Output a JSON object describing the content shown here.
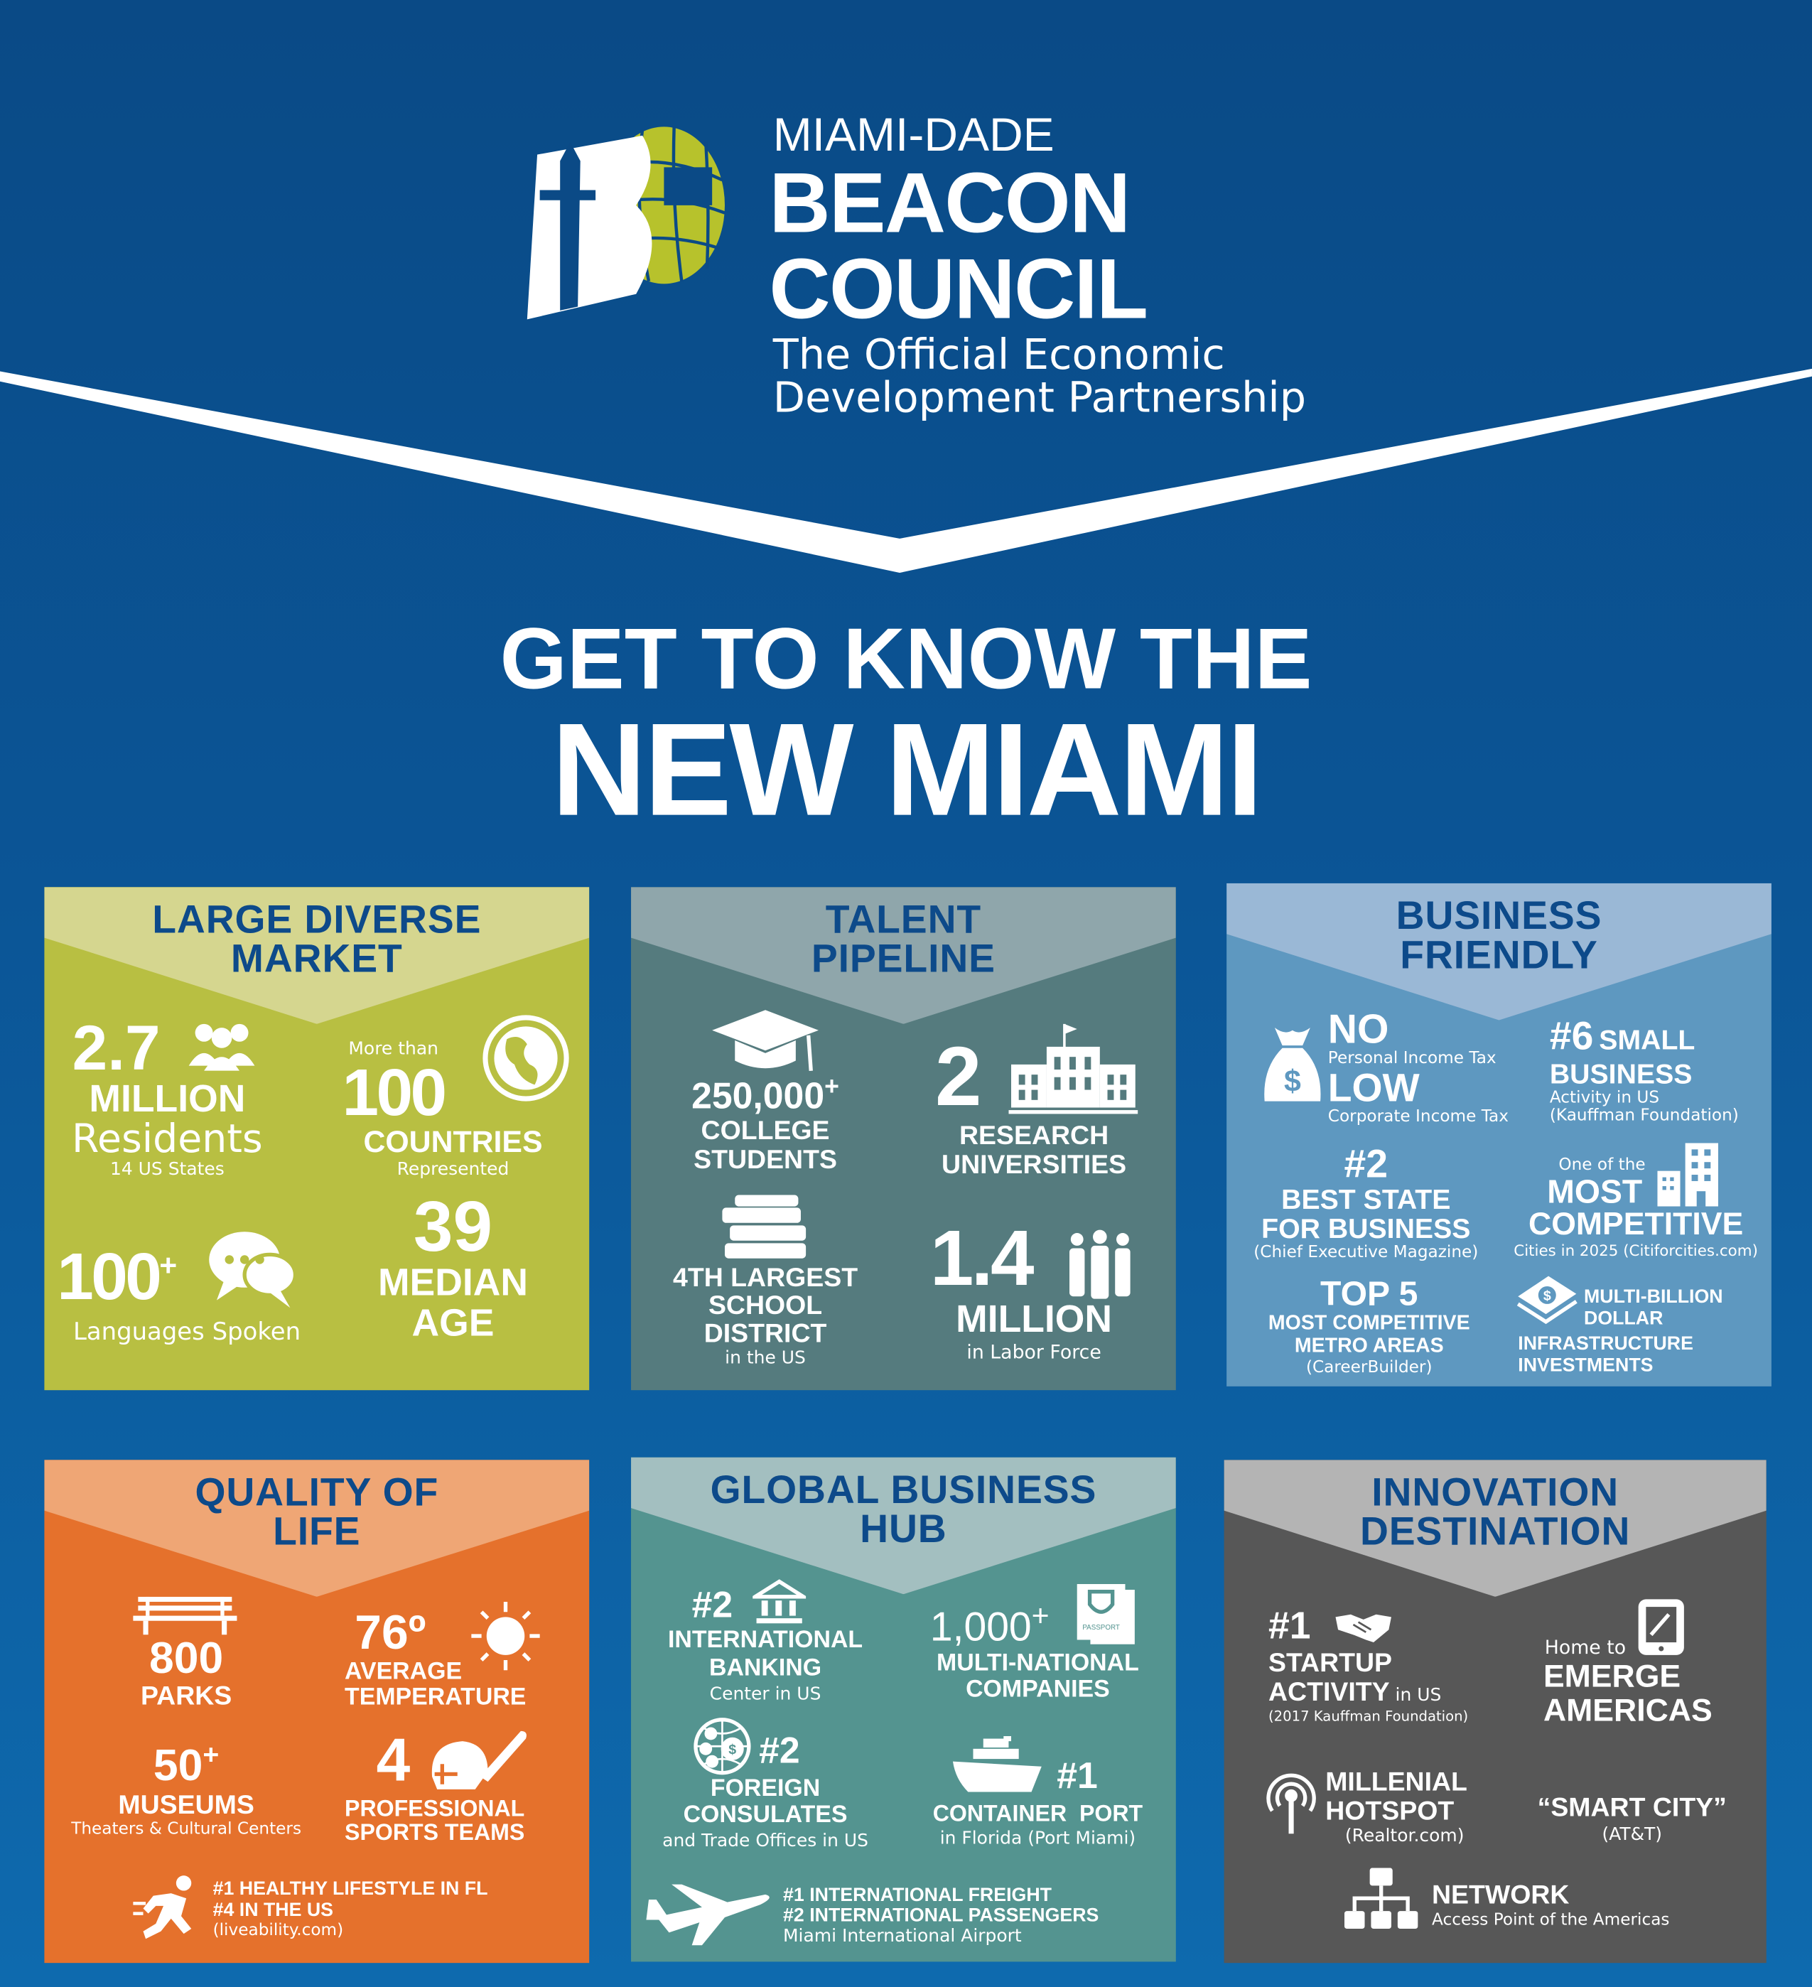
{
  "logo": {
    "pre": "MIAMI-DADE",
    "name1": "BEACON",
    "name2": "COUNCIL",
    "tagline1": "The Official Economic",
    "tagline2": "Development Partnership",
    "mark_letters": "BC"
  },
  "headline": {
    "line1": "GET TO KNOW THE",
    "line2": "NEW MIAMI"
  },
  "colors": {
    "title_blue": "#0d4a8a",
    "green": "#b8bf42",
    "slate": "#557b7e",
    "steel_blue": "#5e98c0",
    "orange": "#e5712c",
    "teal": "#549490",
    "gray": "#575757"
  },
  "panels": {
    "market": {
      "title1": "LARGE DIVERSE",
      "title2": "MARKET",
      "residents": {
        "value": "2.7",
        "unit": "MILLION",
        "label": "Residents",
        "note": "14 US States",
        "icon": "people-icon"
      },
      "countries": {
        "pre": "More than",
        "value": "100",
        "label": "COUNTRIES",
        "note": "Represented",
        "icon": "globe-icon"
      },
      "languages": {
        "value": "100",
        "sup": "+",
        "label": "Languages Spoken",
        "icon": "chat-icon"
      },
      "age": {
        "value": "39",
        "line1": "MEDIAN",
        "line2": "AGE"
      }
    },
    "talent": {
      "title1": "TALENT",
      "title2": "PIPELINE",
      "students": {
        "value": "250,000",
        "sup": "+",
        "line1": "COLLEGE",
        "line2": "STUDENTS",
        "icon": "graduation-cap-icon"
      },
      "universities": {
        "value": "2",
        "line1": "RESEARCH",
        "line2": "UNIVERSITIES",
        "icon": "university-building-icon"
      },
      "district": {
        "line1": "4TH LARGEST",
        "line2": "SCHOOL",
        "line3": "DISTRICT",
        "note": "in the US",
        "icon": "books-icon"
      },
      "labor": {
        "value": "1.4",
        "unit": "MILLION",
        "note": "in Labor Force",
        "icon": "workers-icon"
      }
    },
    "business": {
      "title1": "BUSINESS",
      "title2": "FRIENDLY",
      "tax": {
        "no": "NO",
        "no_note": "Personal Income Tax",
        "low": "LOW",
        "low_note": "Corporate Income Tax",
        "icon": "money-bag-icon"
      },
      "small": {
        "rank": "#6",
        "line1": "SMALL",
        "line2": "BUSINESS",
        "note1": "Activity in US",
        "note2": "(Kauffman Foundation)"
      },
      "state": {
        "rank": "#2",
        "line1": "BEST STATE",
        "line2": "FOR BUSINESS",
        "note": "(Chief Executive Magazine)"
      },
      "competitive": {
        "pre": "One of the",
        "line1": "MOST",
        "line2": "COMPETITIVE",
        "note": "Cities in 2025 (Citiforcities.com)",
        "icon": "skyscraper-icon"
      },
      "metro": {
        "rank": "TOP 5",
        "line1": "MOST COMPETITIVE",
        "line2": "METRO AREAS",
        "note": "(CareerBuilder)"
      },
      "infra": {
        "line1": "MULTI-BILLION",
        "line2": "DOLLAR",
        "line3": "INFRASTRUCTURE",
        "line4": "INVESTMENTS",
        "icon": "cash-icon"
      }
    },
    "quality": {
      "title1": "QUALITY OF",
      "title2": "LIFE",
      "parks": {
        "value": "800",
        "label": "PARKS",
        "icon": "bench-icon"
      },
      "temp": {
        "value": "76º",
        "line1": "AVERAGE",
        "line2": "TEMPERATURE",
        "icon": "sun-icon"
      },
      "museums": {
        "value": "50",
        "sup": "+",
        "label": "MUSEUMS",
        "note": "Theaters & Cultural Centers"
      },
      "sports": {
        "value": "4",
        "line1": "PROFESSIONAL",
        "line2": "SPORTS TEAMS",
        "icon": "sports-icon"
      },
      "health": {
        "line1": "#1 HEALTHY LIFESTYLE IN FL",
        "line2": "#4 IN THE US",
        "note": "(liveability.com)",
        "icon": "runner-icon"
      }
    },
    "global": {
      "title1": "GLOBAL BUSINESS",
      "title2": "HUB",
      "banking": {
        "rank": "#2",
        "line1": "INTERNATIONAL",
        "line2": "BANKING",
        "note": "Center in US",
        "icon": "bank-icon"
      },
      "companies": {
        "value": "1,000",
        "sup": "+",
        "line1": "MULTI-NATIONAL",
        "line2": "COMPANIES",
        "icon": "passport-icon",
        "icon_text": "PASSPORT"
      },
      "consulates": {
        "rank": "#2",
        "line1": "FOREIGN",
        "line2": "CONSULATES",
        "note": "and Trade Offices in US",
        "icon": "currency-globe-icon"
      },
      "port": {
        "rank": "#1",
        "line1": "CONTAINER  PORT",
        "note": "in Florida (Port Miami)",
        "icon": "ship-icon"
      },
      "airport": {
        "line1": "#1 INTERNATIONAL FREIGHT",
        "line2": "#2 INTERNATIONAL PASSENGERS",
        "note": "Miami International Airport",
        "icon": "airplane-icon"
      }
    },
    "innovation": {
      "title1": "INNOVATION",
      "title2": "DESTINATION",
      "startup": {
        "rank": "#1",
        "line1": "STARTUP",
        "line2": "ACTIVITY",
        "suffix": " in US",
        "note": "(2017 Kauffman Foundation)",
        "icon": "handshake-icon"
      },
      "emerge": {
        "pre": "Home to",
        "line1": "EMERGE",
        "line2": "AMERICAS",
        "icon": "tablet-icon"
      },
      "hotspot": {
        "line1": "MILLENIAL",
        "line2": "HOTSPOT",
        "note": "(Realtor.com)",
        "icon": "hotspot-icon"
      },
      "smart": {
        "label": "“SMART CITY”",
        "note": "(AT&T)"
      },
      "network": {
        "label": "NETWORK",
        "note": "Access Point of the Americas",
        "icon": "network-icon"
      }
    }
  }
}
